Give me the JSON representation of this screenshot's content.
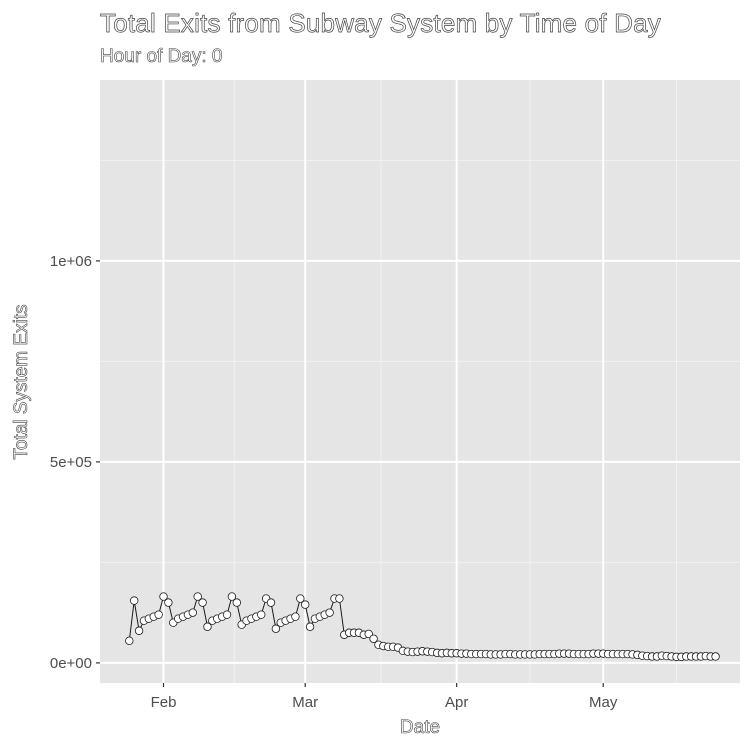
{
  "chart_data": {
    "type": "line",
    "title": "Total Exits from Subway System by Time of Day",
    "subtitle": "Hour of Day: 0",
    "xlabel": "Date",
    "ylabel": "Total System Exits",
    "xlim": [
      "2020-01-19",
      "2020-05-29"
    ],
    "ylim": [
      -50000,
      1450000
    ],
    "x_ticks": [
      {
        "date": "2020-02-01",
        "label": "Feb"
      },
      {
        "date": "2020-03-01",
        "label": "Mar"
      },
      {
        "date": "2020-04-01",
        "label": "Apr"
      },
      {
        "date": "2020-05-01",
        "label": "May"
      }
    ],
    "y_ticks": [
      {
        "value": 0,
        "label": "0e+00"
      },
      {
        "value": 500000,
        "label": "5e+05"
      },
      {
        "value": 1000000,
        "label": "1e+06"
      }
    ],
    "grid": true,
    "marker": "open-circle",
    "series": [
      {
        "x": [
          "2020-01-25",
          "2020-01-26",
          "2020-01-27",
          "2020-01-28",
          "2020-01-29",
          "2020-01-30",
          "2020-01-31",
          "2020-02-01",
          "2020-02-02",
          "2020-02-03",
          "2020-02-04",
          "2020-02-05",
          "2020-02-06",
          "2020-02-07",
          "2020-02-08",
          "2020-02-09",
          "2020-02-10",
          "2020-02-11",
          "2020-02-12",
          "2020-02-13",
          "2020-02-14",
          "2020-02-15",
          "2020-02-16",
          "2020-02-17",
          "2020-02-18",
          "2020-02-19",
          "2020-02-20",
          "2020-02-21",
          "2020-02-22",
          "2020-02-23",
          "2020-02-24",
          "2020-02-25",
          "2020-02-26",
          "2020-02-27",
          "2020-02-28",
          "2020-02-29",
          "2020-03-01",
          "2020-03-02",
          "2020-03-03",
          "2020-03-04",
          "2020-03-05",
          "2020-03-06",
          "2020-03-07",
          "2020-03-08",
          "2020-03-09",
          "2020-03-10",
          "2020-03-11",
          "2020-03-12",
          "2020-03-13",
          "2020-03-14",
          "2020-03-15",
          "2020-03-16",
          "2020-03-17",
          "2020-03-18",
          "2020-03-19",
          "2020-03-20",
          "2020-03-21",
          "2020-03-22",
          "2020-03-23",
          "2020-03-24",
          "2020-03-25",
          "2020-03-26",
          "2020-03-27",
          "2020-03-28",
          "2020-03-29",
          "2020-03-30",
          "2020-03-31",
          "2020-04-01",
          "2020-04-02",
          "2020-04-03",
          "2020-04-04",
          "2020-04-05",
          "2020-04-06",
          "2020-04-07",
          "2020-04-08",
          "2020-04-09",
          "2020-04-10",
          "2020-04-11",
          "2020-04-12",
          "2020-04-13",
          "2020-04-14",
          "2020-04-15",
          "2020-04-16",
          "2020-04-17",
          "2020-04-18",
          "2020-04-19",
          "2020-04-20",
          "2020-04-21",
          "2020-04-22",
          "2020-04-23",
          "2020-04-24",
          "2020-04-25",
          "2020-04-26",
          "2020-04-27",
          "2020-04-28",
          "2020-04-29",
          "2020-04-30",
          "2020-05-01",
          "2020-05-02",
          "2020-05-03",
          "2020-05-04",
          "2020-05-05",
          "2020-05-06",
          "2020-05-07",
          "2020-05-08",
          "2020-05-09",
          "2020-05-10",
          "2020-05-11",
          "2020-05-12",
          "2020-05-13",
          "2020-05-14",
          "2020-05-15",
          "2020-05-16",
          "2020-05-17",
          "2020-05-18",
          "2020-05-19",
          "2020-05-20",
          "2020-05-21",
          "2020-05-22",
          "2020-05-23",
          "2020-05-24"
        ],
        "values": [
          55000,
          155000,
          80000,
          105000,
          110000,
          115000,
          120000,
          165000,
          150000,
          100000,
          110000,
          115000,
          120000,
          125000,
          165000,
          150000,
          90000,
          105000,
          110000,
          115000,
          120000,
          165000,
          150000,
          95000,
          105000,
          110000,
          115000,
          120000,
          160000,
          150000,
          85000,
          100000,
          105000,
          110000,
          115000,
          160000,
          145000,
          90000,
          110000,
          115000,
          120000,
          125000,
          160000,
          160000,
          70000,
          75000,
          75000,
          75000,
          70000,
          72000,
          60000,
          45000,
          42000,
          40000,
          40000,
          38000,
          30000,
          28000,
          27000,
          28000,
          29000,
          28000,
          27000,
          25000,
          24000,
          25000,
          24000,
          24000,
          23000,
          23000,
          22000,
          22000,
          22000,
          22000,
          21000,
          21000,
          21000,
          22000,
          22000,
          21000,
          21000,
          21000,
          21000,
          21000,
          22000,
          22000,
          22000,
          22000,
          23000,
          23000,
          23000,
          22000,
          22000,
          22000,
          22000,
          23000,
          23000,
          23000,
          22000,
          22000,
          22000,
          22000,
          22000,
          21000,
          20000,
          18000,
          17000,
          16000,
          16000,
          18000,
          17000,
          16000,
          15000,
          15000,
          16000,
          16000,
          16000,
          16000,
          17000,
          16000,
          16000
        ]
      }
    ]
  }
}
